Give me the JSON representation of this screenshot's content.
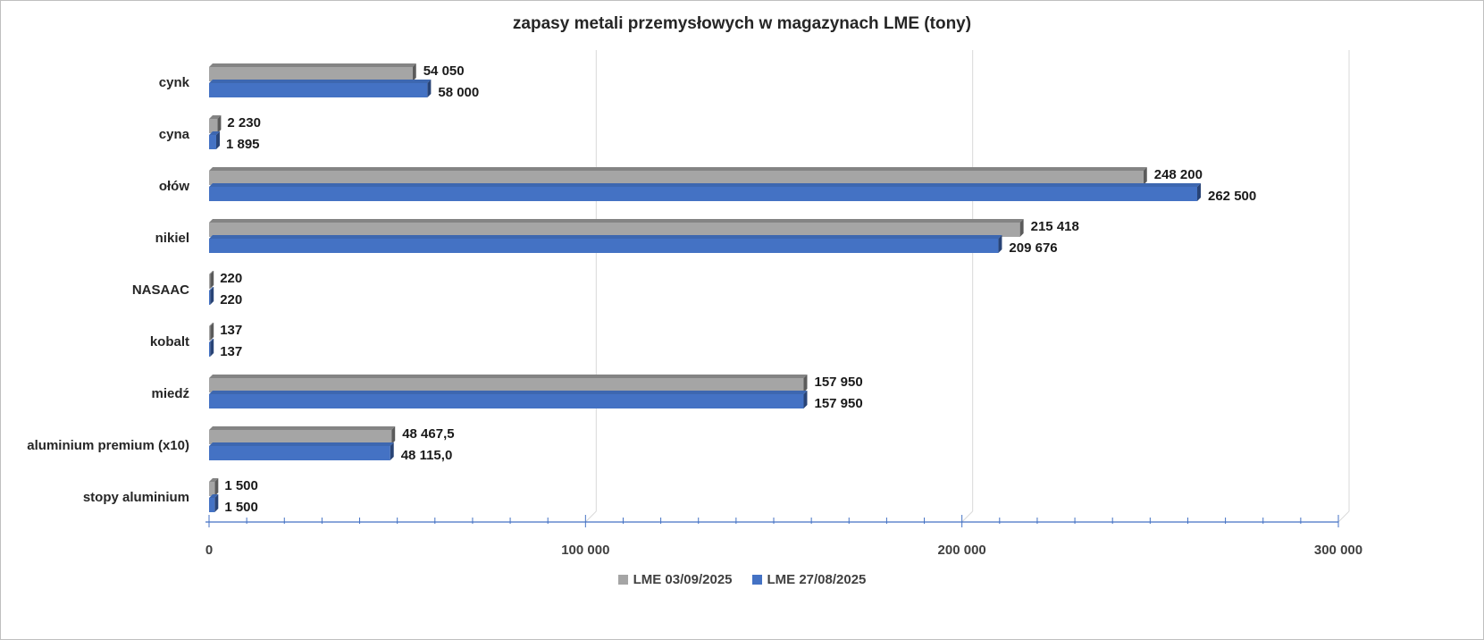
{
  "chart_data": {
    "type": "bar",
    "orientation": "horizontal",
    "title": "zapasy metali przemysłowych w magazynach LME (tony)",
    "categories": [
      "cynk",
      "cyna",
      "ołów",
      "nikiel",
      "NASAAC",
      "kobalt",
      "miedź",
      "aluminium premium (x10)",
      "stopy aluminium"
    ],
    "series": [
      {
        "name": "LME 03/09/2025",
        "color": "#a5a5a5",
        "values": [
          54050,
          2230,
          248200,
          215418,
          220,
          137,
          157950,
          48467.5,
          1500
        ],
        "labels": [
          "54 050",
          "2 230",
          "248 200",
          "215 418",
          "220",
          "137",
          "157 950",
          "48 467,5",
          "1 500"
        ]
      },
      {
        "name": "LME 27/08/2025",
        "color": "#4472c4",
        "values": [
          58000,
          1895,
          262500,
          209676,
          220,
          137,
          157950,
          48115.0,
          1500
        ],
        "labels": [
          "58 000",
          "1 895",
          "262 500",
          "209 676",
          "220",
          "137",
          "157 950",
          "48 115,0",
          "1 500"
        ]
      }
    ],
    "xlim": [
      0,
      300000
    ],
    "x_ticks": [
      0,
      100000,
      200000,
      300000
    ],
    "x_tick_labels": [
      "0",
      "100 000",
      "200 000",
      "300 000"
    ],
    "grid": true,
    "legend_position": "bottom",
    "style": "3d"
  }
}
